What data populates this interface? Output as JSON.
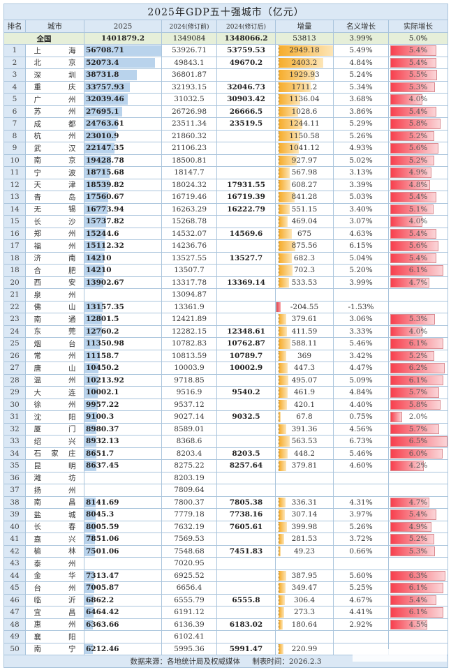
{
  "title": "2025年GDP五十强城市（亿元）",
  "headers": {
    "rank": "排名",
    "city": "城市",
    "gdp2025": "2025",
    "gdp2024_pre": "2024(修订前)",
    "gdp2024_rev": "2024(修订后)",
    "increase": "增量",
    "nominal": "名义增长",
    "real": "实际增长"
  },
  "national": {
    "label": "全国",
    "gdp2025": "1401879.2",
    "gdp2024_pre": "1349084",
    "gdp2024_rev": "1348066.2",
    "increase": "53813",
    "nominal": "3.99%",
    "real": "5.0%"
  },
  "rows": [
    {
      "rank": "1",
      "city": "上海",
      "gdp2025": "56708.71",
      "pre": "53926.71",
      "rev": "53759.53",
      "inc": "2949.18",
      "nom": "5.49%",
      "real": "5.4%"
    },
    {
      "rank": "2",
      "city": "北京",
      "gdp2025": "52073.4",
      "pre": "49843.1",
      "rev": "49670.2",
      "inc": "2403.2",
      "nom": "4.84%",
      "real": "5.4%"
    },
    {
      "rank": "3",
      "city": "深圳",
      "gdp2025": "38731.8",
      "pre": "36801.87",
      "rev": "",
      "inc": "1929.93",
      "nom": "5.24%",
      "real": "5.5%"
    },
    {
      "rank": "4",
      "city": "重庆",
      "gdp2025": "33757.93",
      "pre": "32193.15",
      "rev": "32046.73",
      "inc": "1711.2",
      "nom": "5.34%",
      "real": "5.3%"
    },
    {
      "rank": "5",
      "city": "广州",
      "gdp2025": "32039.46",
      "pre": "31032.5",
      "rev": "30903.42",
      "inc": "1136.04",
      "nom": "3.68%",
      "real": "4.0%"
    },
    {
      "rank": "6",
      "city": "苏州",
      "gdp2025": "27695.1",
      "pre": "26726.98",
      "rev": "26666.5",
      "inc": "1028.6",
      "nom": "3.86%",
      "real": "5.4%"
    },
    {
      "rank": "7",
      "city": "成都",
      "gdp2025": "24763.61",
      "pre": "23511.34",
      "rev": "23519.5",
      "inc": "1244.11",
      "nom": "5.29%",
      "real": "5.8%"
    },
    {
      "rank": "8",
      "city": "杭州",
      "gdp2025": "23010.9",
      "pre": "21860.32",
      "rev": "",
      "inc": "1150.58",
      "nom": "5.26%",
      "real": "5.2%"
    },
    {
      "rank": "9",
      "city": "武汉",
      "gdp2025": "22147.35",
      "pre": "21106.23",
      "rev": "",
      "inc": "1041.12",
      "nom": "4.93%",
      "real": "5.6%"
    },
    {
      "rank": "10",
      "city": "南京",
      "gdp2025": "19428.78",
      "pre": "18500.81",
      "rev": "",
      "inc": "927.97",
      "nom": "5.02%",
      "real": "5.2%"
    },
    {
      "rank": "11",
      "city": "宁波",
      "gdp2025": "18715.68",
      "pre": "18147.7",
      "rev": "",
      "inc": "567.98",
      "nom": "3.13%",
      "real": "4.9%"
    },
    {
      "rank": "12",
      "city": "天津",
      "gdp2025": "18539.82",
      "pre": "18024.32",
      "rev": "17931.55",
      "inc": "608.27",
      "nom": "3.39%",
      "real": "4.8%"
    },
    {
      "rank": "13",
      "city": "青岛",
      "gdp2025": "17560.67",
      "pre": "16719.46",
      "rev": "16719.39",
      "inc": "841.28",
      "nom": "5.03%",
      "real": "5.4%"
    },
    {
      "rank": "14",
      "city": "无锡",
      "gdp2025": "16773.94",
      "pre": "16263.29",
      "rev": "16222.79",
      "inc": "551.15",
      "nom": "3.40%",
      "real": "5.1%"
    },
    {
      "rank": "15",
      "city": "长沙",
      "gdp2025": "15737.82",
      "pre": "15268.78",
      "rev": "",
      "inc": "469.04",
      "nom": "3.07%",
      "real": "4.0%"
    },
    {
      "rank": "16",
      "city": "郑州",
      "gdp2025": "15244.6",
      "pre": "14532.07",
      "rev": "14569.6",
      "inc": "675",
      "nom": "4.63%",
      "real": "5.4%"
    },
    {
      "rank": "17",
      "city": "福州",
      "gdp2025": "15112.32",
      "pre": "14236.76",
      "rev": "",
      "inc": "875.56",
      "nom": "6.15%",
      "real": "5.6%"
    },
    {
      "rank": "18",
      "city": "济南",
      "gdp2025": "14210",
      "pre": "13527.55",
      "rev": "13527.7",
      "inc": "682.3",
      "nom": "5.04%",
      "real": "5.4%"
    },
    {
      "rank": "18",
      "city": "合肥",
      "gdp2025": "14210",
      "pre": "13507.7",
      "rev": "",
      "inc": "702.3",
      "nom": "5.20%",
      "real": "6.1%"
    },
    {
      "rank": "20",
      "city": "西安",
      "gdp2025": "13902.67",
      "pre": "13317.78",
      "rev": "13369.14",
      "inc": "533.53",
      "nom": "3.99%",
      "real": "4.7%"
    },
    {
      "rank": "21",
      "city": "泉州",
      "gdp2025": "",
      "pre": "13094.87",
      "rev": "",
      "inc": "",
      "nom": "",
      "real": ""
    },
    {
      "rank": "22",
      "city": "佛山",
      "gdp2025": "13157.35",
      "pre": "13361.9",
      "rev": "",
      "inc": "-204.55",
      "nom": "-1.53%",
      "real": ""
    },
    {
      "rank": "23",
      "city": "南通",
      "gdp2025": "12801.5",
      "pre": "12421.89",
      "rev": "",
      "inc": "379.61",
      "nom": "3.06%",
      "real": "5.3%"
    },
    {
      "rank": "24",
      "city": "东莞",
      "gdp2025": "12760.2",
      "pre": "12282.15",
      "rev": "12348.61",
      "inc": "411.59",
      "nom": "3.33%",
      "real": "4.0%"
    },
    {
      "rank": "25",
      "city": "烟台",
      "gdp2025": "11350.98",
      "pre": "10782.83",
      "rev": "10762.87",
      "inc": "588.11",
      "nom": "5.46%",
      "real": "6.1%"
    },
    {
      "rank": "26",
      "city": "常州",
      "gdp2025": "11158.7",
      "pre": "10813.59",
      "rev": "10789.7",
      "inc": "369",
      "nom": "3.42%",
      "real": "5.2%"
    },
    {
      "rank": "27",
      "city": "唐山",
      "gdp2025": "10450.2",
      "pre": "10003.9",
      "rev": "10002.9",
      "inc": "447.3",
      "nom": "4.47%",
      "real": "6.2%"
    },
    {
      "rank": "28",
      "city": "温州",
      "gdp2025": "10213.92",
      "pre": "9718.85",
      "rev": "",
      "inc": "495.07",
      "nom": "5.09%",
      "real": "6.1%"
    },
    {
      "rank": "29",
      "city": "大连",
      "gdp2025": "10002.1",
      "pre": "9516.9",
      "rev": "9540.2",
      "inc": "461.9",
      "nom": "4.84%",
      "real": "5.7%"
    },
    {
      "rank": "30",
      "city": "徐州",
      "gdp2025": "9957.22",
      "pre": "9537.12",
      "rev": "",
      "inc": "420.1",
      "nom": "4.40%",
      "real": "5.8%"
    },
    {
      "rank": "31",
      "city": "沈阳",
      "gdp2025": "9100.3",
      "pre": "9027.14",
      "rev": "9032.5",
      "inc": "67.8",
      "nom": "0.75%",
      "real": "2.0%"
    },
    {
      "rank": "32",
      "city": "厦门",
      "gdp2025": "8980.37",
      "pre": "8589.01",
      "rev": "",
      "inc": "391.36",
      "nom": "4.56%",
      "real": "5.7%"
    },
    {
      "rank": "33",
      "city": "绍兴",
      "gdp2025": "8932.13",
      "pre": "8368.6",
      "rev": "",
      "inc": "563.53",
      "nom": "6.73%",
      "real": "6.5%"
    },
    {
      "rank": "34",
      "city": "石家庄",
      "gdp2025": "8651.7",
      "pre": "8203.4",
      "rev": "8203.5",
      "inc": "448.2",
      "nom": "5.46%",
      "real": "6.0%"
    },
    {
      "rank": "35",
      "city": "昆明",
      "gdp2025": "8637.45",
      "pre": "8275.22",
      "rev": "8257.64",
      "inc": "379.81",
      "nom": "4.60%",
      "real": "4.2%"
    },
    {
      "rank": "36",
      "city": "潍坊",
      "gdp2025": "",
      "pre": "8203.19",
      "rev": "",
      "inc": "",
      "nom": "",
      "real": ""
    },
    {
      "rank": "37",
      "city": "扬州",
      "gdp2025": "",
      "pre": "7809.64",
      "rev": "",
      "inc": "",
      "nom": "",
      "real": ""
    },
    {
      "rank": "38",
      "city": "南昌",
      "gdp2025": "8141.69",
      "pre": "7800.37",
      "rev": "7805.38",
      "inc": "336.31",
      "nom": "4.31%",
      "real": "4.7%"
    },
    {
      "rank": "39",
      "city": "盐城",
      "gdp2025": "8045.3",
      "pre": "7779.18",
      "rev": "7738.16",
      "inc": "307.14",
      "nom": "3.97%",
      "real": "5.4%"
    },
    {
      "rank": "40",
      "city": "长春",
      "gdp2025": "8005.59",
      "pre": "7632.19",
      "rev": "7605.61",
      "inc": "399.98",
      "nom": "5.26%",
      "real": "4.9%"
    },
    {
      "rank": "41",
      "city": "嘉兴",
      "gdp2025": "7851.06",
      "pre": "7569.53",
      "rev": "",
      "inc": "281.53",
      "nom": "3.72%",
      "real": "5.2%"
    },
    {
      "rank": "42",
      "city": "榆林",
      "gdp2025": "7501.06",
      "pre": "7548.68",
      "rev": "7451.83",
      "inc": "49.23",
      "nom": "0.66%",
      "real": "5.3%"
    },
    {
      "rank": "43",
      "city": "泰州",
      "gdp2025": "",
      "pre": "7020.95",
      "rev": "",
      "inc": "",
      "nom": "",
      "real": ""
    },
    {
      "rank": "44",
      "city": "金华",
      "gdp2025": "7313.47",
      "pre": "6925.52",
      "rev": "",
      "inc": "387.95",
      "nom": "5.60%",
      "real": "6.3%"
    },
    {
      "rank": "45",
      "city": "台州",
      "gdp2025": "7005.87",
      "pre": "6656.4",
      "rev": "",
      "inc": "349.47",
      "nom": "5.25%",
      "real": "6.1%"
    },
    {
      "rank": "46",
      "city": "临沂",
      "gdp2025": "6862.2",
      "pre": "6555.79",
      "rev": "6555.8",
      "inc": "306.4",
      "nom": "4.67%",
      "real": "5.4%"
    },
    {
      "rank": "47",
      "city": "宜昌",
      "gdp2025": "6464.42",
      "pre": "6191.12",
      "rev": "",
      "inc": "273.3",
      "nom": "4.41%",
      "real": "6.1%"
    },
    {
      "rank": "48",
      "city": "惠州",
      "gdp2025": "6363.66",
      "pre": "6136.39",
      "rev": "6183.02",
      "inc": "180.64",
      "nom": "2.92%",
      "real": "4.5%"
    },
    {
      "rank": "49",
      "city": "襄阳",
      "gdp2025": "",
      "pre": "6102.41",
      "rev": "",
      "inc": "",
      "nom": "",
      "real": ""
    },
    {
      "rank": "50",
      "city": "南宁",
      "gdp2025": "6212.46",
      "pre": "5995.36",
      "rev": "5991.47",
      "inc": "220.99",
      "nom": "",
      "real": ""
    }
  ],
  "footer": {
    "source": "数据来源：各地统计局及权威媒体",
    "made": "制表时间：2026.2.3"
  },
  "colors": {
    "header_bg": "#dbe8f5",
    "national_bg": "#e6efd9",
    "gdp_bar": "#b9d3ec",
    "increase_bar": "#f6ad2e",
    "real_bar": "#f7404e",
    "grid": "#a9c4dc"
  }
}
